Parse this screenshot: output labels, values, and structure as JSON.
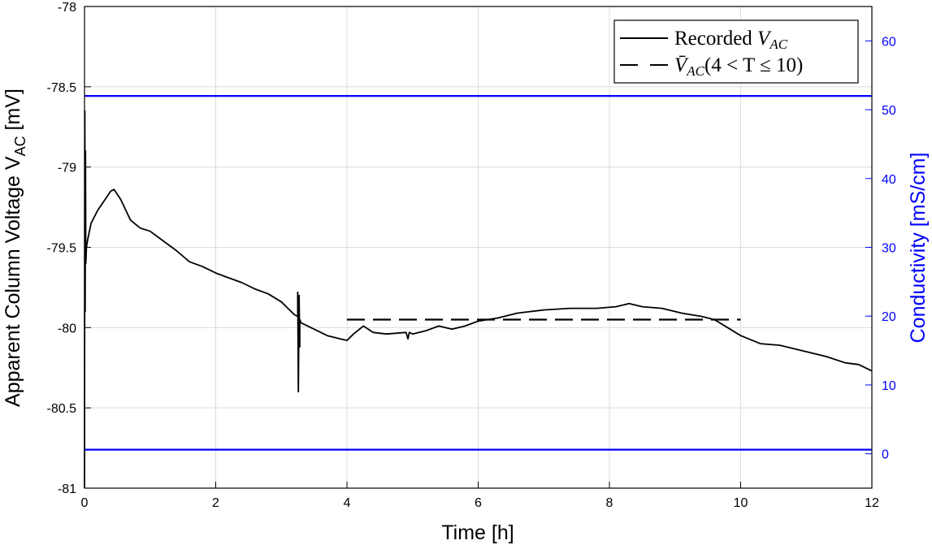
{
  "chart_data": {
    "type": "line",
    "xlabel": "Time [h]",
    "ylabel": {
      "main": "Apparent Column Voltage V",
      "sub": "AC",
      "unit": " [mV]"
    },
    "y2label": "Conductivity [mS/cm]",
    "xlim": [
      0,
      12
    ],
    "ylim": [
      -81,
      -78
    ],
    "y2lim": [
      -5,
      65
    ],
    "xticks": [
      "0",
      "2",
      "4",
      "6",
      "8",
      "10",
      "12"
    ],
    "yticks": [
      "-78",
      "-78.5",
      "-79",
      "-79.5",
      "-80",
      "-80.5",
      "-81"
    ],
    "y2ticks": [
      "0",
      "10",
      "20",
      "30",
      "40",
      "50",
      "60"
    ],
    "grid": true,
    "legend_position": "top-right",
    "colors": {
      "voltage": "#000000",
      "conductivity": "#0000ff",
      "grid": "#dcdcdc"
    },
    "series": [
      {
        "name": "Recorded V_AC",
        "legend": {
          "pre": "Recorded ",
          "var": "V",
          "sub": "AC",
          "post": ""
        },
        "axis": "left",
        "style": "solid",
        "x": [
          0,
          0.005,
          0.01,
          0.015,
          0.02,
          0.03,
          0.05,
          0.1,
          0.2,
          0.3,
          0.4,
          0.45,
          0.55,
          0.7,
          0.85,
          1.0,
          1.2,
          1.4,
          1.6,
          1.8,
          2.0,
          2.2,
          2.4,
          2.6,
          2.8,
          3.0,
          3.1,
          3.2,
          3.25,
          3.25,
          3.26,
          3.27,
          3.28,
          3.28,
          3.3,
          3.5,
          3.7,
          3.9,
          4.0,
          4.1,
          4.25,
          4.4,
          4.6,
          4.9,
          4.93,
          4.95,
          5.0,
          5.2,
          5.4,
          5.6,
          5.8,
          6.0,
          6.3,
          6.6,
          7.0,
          7.4,
          7.8,
          8.1,
          8.3,
          8.5,
          8.8,
          9.1,
          9.4,
          9.6,
          9.8,
          10.0,
          10.3,
          10.6,
          11.0,
          11.3,
          11.6,
          11.8,
          12.0
        ],
        "y": [
          -81,
          -78.65,
          -79.9,
          -78.9,
          -79.6,
          -79.5,
          -79.45,
          -79.35,
          -79.27,
          -79.21,
          -79.15,
          -79.14,
          -79.2,
          -79.33,
          -79.38,
          -79.4,
          -79.46,
          -79.52,
          -79.59,
          -79.62,
          -79.66,
          -79.69,
          -79.72,
          -79.76,
          -79.79,
          -79.84,
          -79.88,
          -79.92,
          -79.93,
          -79.78,
          -80.4,
          -79.8,
          -80.12,
          -79.95,
          -79.97,
          -80.01,
          -80.05,
          -80.07,
          -80.08,
          -80.04,
          -79.99,
          -80.03,
          -80.04,
          -80.03,
          -80.07,
          -80.03,
          -80.04,
          -80.02,
          -79.99,
          -80.01,
          -79.99,
          -79.96,
          -79.94,
          -79.91,
          -79.89,
          -79.88,
          -79.88,
          -79.87,
          -79.85,
          -79.87,
          -79.88,
          -79.91,
          -79.93,
          -79.95,
          -80.0,
          -80.05,
          -80.1,
          -80.11,
          -80.15,
          -80.18,
          -80.22,
          -80.23,
          -80.27
        ]
      },
      {
        "name": "V̄_AC(4 < T ≤ 10)",
        "legend": {
          "pre": "",
          "var": "V̄",
          "sub": "AC",
          "post": "(4 < T ≤ 10)"
        },
        "axis": "left",
        "style": "dashed",
        "x": [
          4,
          10
        ],
        "y": [
          -79.95,
          -79.95
        ]
      },
      {
        "axis": "right",
        "style": "solid",
        "x": [
          0,
          12
        ],
        "y": [
          52,
          52
        ]
      },
      {
        "axis": "right",
        "style": "solid",
        "x": [
          0,
          12
        ],
        "y": [
          0.6,
          0.6
        ]
      }
    ]
  }
}
